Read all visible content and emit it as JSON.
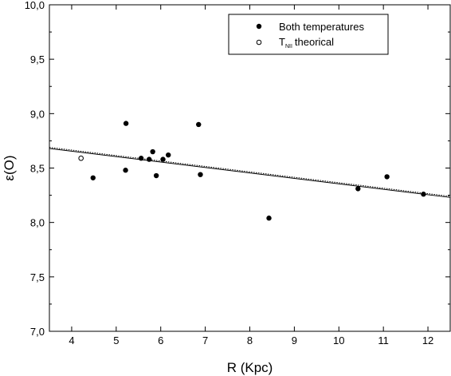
{
  "chart_data": {
    "type": "scatter",
    "xlabel": "R (Kpc)",
    "ylabel": "ε(O)",
    "xlim": [
      3.5,
      12.5
    ],
    "ylim": [
      7.0,
      10.0
    ],
    "xticks": [
      4,
      5,
      6,
      7,
      8,
      9,
      10,
      11,
      12
    ],
    "yticks": [
      7.0,
      7.5,
      8.0,
      8.5,
      9.0,
      9.5,
      10.0
    ],
    "xtick_labels": [
      "4",
      "5",
      "6",
      "7",
      "8",
      "9",
      "10",
      "11",
      "12"
    ],
    "ytick_labels": [
      "7,0",
      "7,5",
      "8,0",
      "8,5",
      "9,0",
      "9,5",
      "10,0"
    ],
    "grid": false,
    "legend_position": "top-right",
    "series": [
      {
        "name": "Both temperatures",
        "marker": "filled-circle",
        "color": "#000000",
        "points": [
          [
            4.48,
            8.41
          ],
          [
            5.22,
            8.91
          ],
          [
            5.21,
            8.48
          ],
          [
            5.56,
            8.59
          ],
          [
            5.74,
            8.58
          ],
          [
            5.82,
            8.65
          ],
          [
            5.9,
            8.43
          ],
          [
            6.05,
            8.58
          ],
          [
            6.17,
            8.62
          ],
          [
            6.85,
            8.9
          ],
          [
            6.89,
            8.44
          ],
          [
            8.43,
            8.04
          ],
          [
            10.43,
            8.31
          ],
          [
            11.08,
            8.42
          ],
          [
            11.9,
            8.26
          ]
        ]
      },
      {
        "name_main": "T",
        "name_sub": "NII",
        "name_tail": "theorical",
        "marker": "open-circle",
        "color": "#000000",
        "points": [
          [
            4.21,
            8.59
          ]
        ]
      }
    ],
    "fits": [
      {
        "style": "solid",
        "x": [
          3.5,
          12.5
        ],
        "y": [
          8.68,
          8.23
        ]
      },
      {
        "style": "dotted",
        "x": [
          3.5,
          12.5
        ],
        "y": [
          8.69,
          8.24
        ]
      }
    ]
  }
}
